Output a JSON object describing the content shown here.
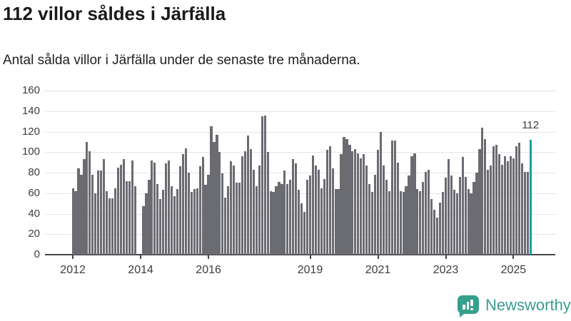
{
  "header": {
    "title": "112 villor såldes i Järfälla",
    "subtitle": "Antal sålda villor i Järfälla under de senaste tre månaderna."
  },
  "chart_data": {
    "type": "bar",
    "title": "112 villor såldes i Järfälla",
    "subtitle": "Antal sålda villor i Järfälla under de senaste tre månaderna.",
    "xlabel": "",
    "ylabel": "",
    "ylim": [
      0,
      160
    ],
    "grid": true,
    "y_ticks": [
      0,
      20,
      40,
      60,
      80,
      100,
      120,
      140,
      160
    ],
    "x_tick_years": [
      2012,
      2014,
      2016,
      2019,
      2021,
      2023,
      2025
    ],
    "start_month": "2012-01",
    "end_month": "2025-07",
    "months_note": "monthly bars, value = houses sold during latest three months; 0 = no bar shown (missing)",
    "missing_months": [
      "2013-12",
      "2014-01"
    ],
    "values": [
      65,
      62,
      84,
      78,
      93,
      110,
      101,
      78,
      60,
      82,
      82,
      93,
      62,
      55,
      55,
      65,
      85,
      88,
      93,
      72,
      72,
      92,
      67,
      0,
      0,
      47,
      60,
      73,
      92,
      90,
      69,
      54,
      63,
      89,
      92,
      67,
      57,
      64,
      86,
      98,
      104,
      80,
      61,
      64,
      65,
      86,
      95,
      68,
      78,
      125,
      110,
      117,
      100,
      79,
      56,
      67,
      91,
      87,
      70,
      70,
      96,
      101,
      116,
      103,
      83,
      67,
      87,
      135,
      136,
      100,
      62,
      61,
      67,
      71,
      69,
      82,
      69,
      73,
      93,
      89,
      63,
      50,
      42,
      73,
      77,
      97,
      87,
      83,
      65,
      74,
      102,
      106,
      84,
      64,
      64,
      98,
      115,
      113,
      107,
      101,
      103,
      99,
      94,
      98,
      87,
      69,
      61,
      78,
      102,
      120,
      87,
      73,
      62,
      111,
      111,
      90,
      62,
      61,
      67,
      77,
      96,
      99,
      64,
      62,
      71,
      81,
      83,
      54,
      44,
      36,
      51,
      61,
      75,
      93,
      77,
      63,
      60,
      76,
      95,
      76,
      64,
      60,
      71,
      80,
      103,
      124,
      113,
      83,
      87,
      106,
      107,
      98,
      88,
      96,
      91,
      96,
      94,
      106,
      109,
      89,
      81,
      81,
      112
    ],
    "highlight_last": {
      "value": 112,
      "label": "112"
    },
    "colors": {
      "bar": "#6b6b72",
      "highlight": "#15a3a0",
      "gridline": "#e4e4e4",
      "axis": "#454545"
    },
    "legend": []
  },
  "footer": {
    "brand": "Newsworthy",
    "logo_icon": "bar-chart-speech-bubble-icon"
  }
}
